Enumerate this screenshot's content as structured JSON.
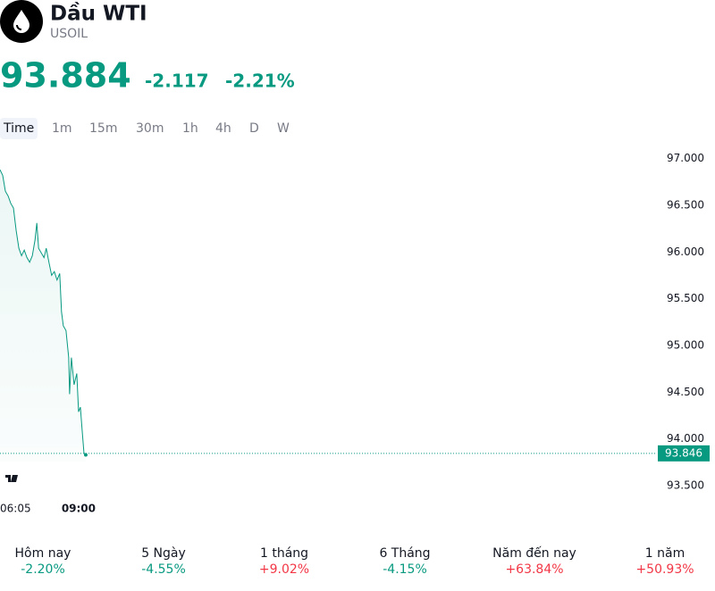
{
  "header": {
    "title": "Dầu WTI",
    "symbol": "USOIL",
    "price": "93.884",
    "change": "-2.117",
    "change_percent": "-2.21%"
  },
  "timeframes": [
    "Time",
    "1m",
    "15m",
    "30m",
    "1h",
    "4h",
    "D",
    "W"
  ],
  "chart_data": {
    "type": "line",
    "color": "#089981",
    "x": [
      365,
      371,
      377,
      383,
      389,
      395,
      401,
      407,
      413,
      419,
      425,
      431,
      437,
      443,
      447,
      451,
      457,
      463,
      468,
      474,
      480,
      486,
      492,
      498,
      502,
      506,
      512,
      518,
      520,
      524,
      530,
      536,
      540,
      544,
      548,
      552,
      556
    ],
    "values": [
      96.88,
      96.82,
      96.65,
      96.6,
      96.52,
      96.47,
      96.23,
      96.04,
      95.96,
      96.02,
      95.94,
      95.89,
      95.96,
      96.13,
      96.31,
      96.04,
      95.99,
      95.94,
      96.04,
      95.89,
      95.75,
      95.79,
      95.7,
      95.77,
      95.36,
      95.21,
      95.16,
      94.87,
      94.48,
      94.87,
      94.58,
      94.7,
      94.29,
      94.34,
      94.09,
      93.85,
      93.83
    ],
    "last_value": 93.846,
    "xlim": [
      365,
      1828
    ],
    "xticks": [
      {
        "value": 365,
        "label": "06:05"
      },
      {
        "value": 540,
        "label": "09:00"
      }
    ],
    "ylim": [
      93.3,
      97.12
    ],
    "yticks": [
      {
        "value": 93.5,
        "label": "93.500"
      },
      {
        "value": 94,
        "label": "94.000"
      },
      {
        "value": 94.5,
        "label": "94.500"
      },
      {
        "value": 95,
        "label": "95.000"
      },
      {
        "value": 95.5,
        "label": "95.500"
      },
      {
        "value": 96,
        "label": "96.000"
      },
      {
        "value": 96.5,
        "label": "96.500"
      },
      {
        "value": 97,
        "label": "97.000"
      }
    ]
  },
  "performance": [
    {
      "label": "Hôm nay",
      "value": "-2.20%"
    },
    {
      "label": "5 Ngày",
      "value": "-4.55%"
    },
    {
      "label": "1 tháng",
      "value": "+9.02%"
    },
    {
      "label": "6 Tháng",
      "value": "-4.15%"
    },
    {
      "label": "Năm đến nay",
      "value": "+63.84%"
    },
    {
      "label": "1 năm",
      "value": "+50.93%"
    }
  ]
}
